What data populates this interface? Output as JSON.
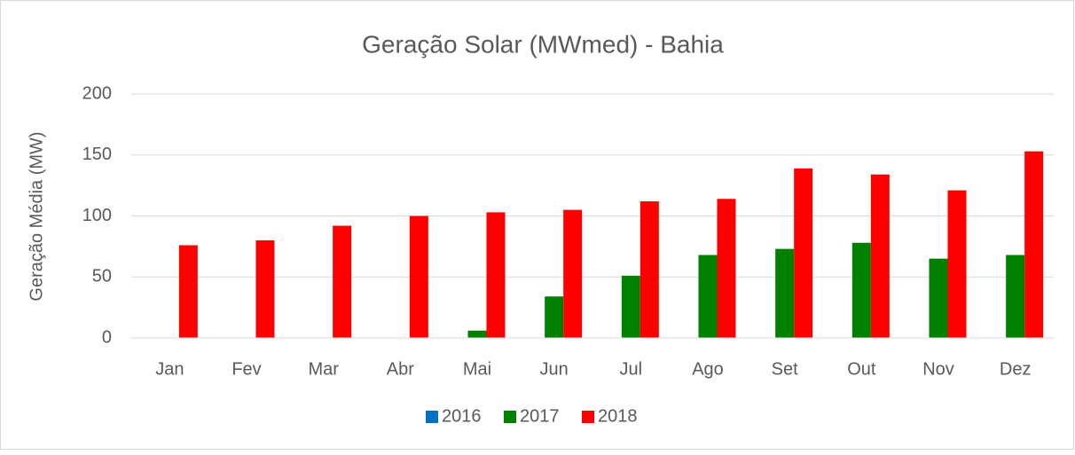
{
  "chart_data": {
    "type": "bar",
    "title": "Geração Solar (MWmed) - Bahia",
    "y_label": "Geração Média (MW)",
    "categories": [
      "Jan",
      "Fev",
      "Mar",
      "Abr",
      "Mai",
      "Jun",
      "Jul",
      "Ago",
      "Set",
      "Out",
      "Nov",
      "Dez"
    ],
    "series": [
      {
        "name": "2016",
        "color": "#0070c0",
        "values": [
          0,
          0,
          0,
          0,
          0,
          0,
          0,
          0,
          0,
          0,
          0,
          0
        ]
      },
      {
        "name": "2017",
        "color": "#008000",
        "values": [
          0,
          0,
          0,
          0,
          6,
          34,
          51,
          68,
          73,
          78,
          65,
          68
        ]
      },
      {
        "name": "2018",
        "color": "#ff0000",
        "values": [
          76,
          80,
          92,
          100,
          103,
          105,
          112,
          114,
          139,
          134,
          121,
          153
        ]
      }
    ],
    "ylim": [
      0,
      200
    ],
    "yticks": [
      0,
      50,
      100,
      150,
      200
    ],
    "grid": true,
    "legend": "bottom"
  }
}
